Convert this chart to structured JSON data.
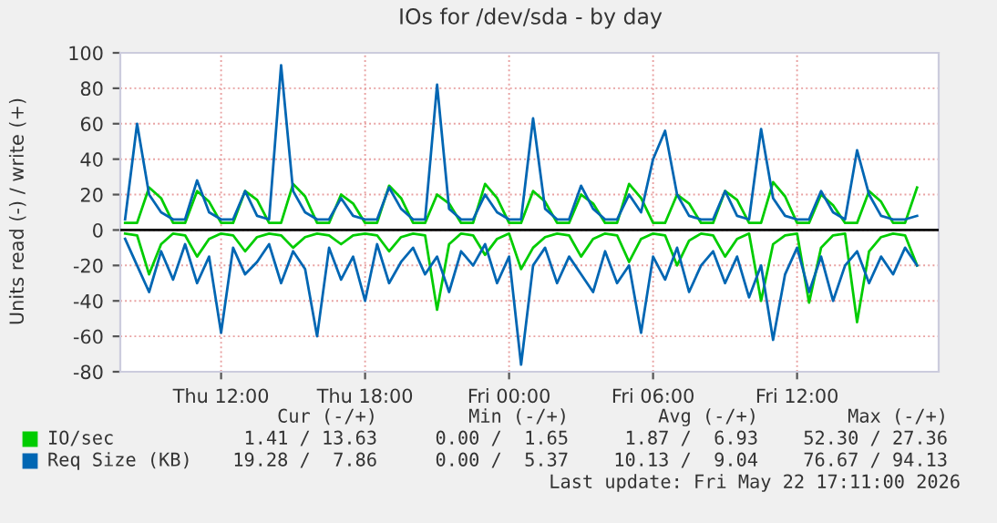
{
  "chart_data": {
    "type": "line",
    "title": "IOs for /dev/sda - by day",
    "ylabel": "Units read (-) / write (+)",
    "x": [
      "2026-05-21T08:00",
      "2026-05-21T08:30",
      "2026-05-21T09:00",
      "2026-05-21T09:30",
      "2026-05-21T10:00",
      "2026-05-21T10:30",
      "2026-05-21T11:00",
      "2026-05-21T11:30",
      "2026-05-21T12:00",
      "2026-05-21T12:30",
      "2026-05-21T13:00",
      "2026-05-21T13:30",
      "2026-05-21T14:00",
      "2026-05-21T14:30",
      "2026-05-21T15:00",
      "2026-05-21T15:30",
      "2026-05-21T16:00",
      "2026-05-21T16:30",
      "2026-05-21T17:00",
      "2026-05-21T17:30",
      "2026-05-21T18:00",
      "2026-05-21T18:30",
      "2026-05-21T19:00",
      "2026-05-21T19:30",
      "2026-05-21T20:00",
      "2026-05-21T20:30",
      "2026-05-21T21:00",
      "2026-05-21T21:30",
      "2026-05-21T22:00",
      "2026-05-21T22:30",
      "2026-05-21T23:00",
      "2026-05-21T23:30",
      "2026-05-22T00:00",
      "2026-05-22T00:30",
      "2026-05-22T01:00",
      "2026-05-22T01:30",
      "2026-05-22T02:00",
      "2026-05-22T02:30",
      "2026-05-22T03:00",
      "2026-05-22T03:30",
      "2026-05-22T04:00",
      "2026-05-22T04:30",
      "2026-05-22T05:00",
      "2026-05-22T05:30",
      "2026-05-22T06:00",
      "2026-05-22T06:30",
      "2026-05-22T07:00",
      "2026-05-22T07:30",
      "2026-05-22T08:00",
      "2026-05-22T08:30",
      "2026-05-22T09:00",
      "2026-05-22T09:30",
      "2026-05-22T10:00",
      "2026-05-22T10:30",
      "2026-05-22T11:00",
      "2026-05-22T11:30",
      "2026-05-22T12:00",
      "2026-05-22T12:30",
      "2026-05-22T13:00",
      "2026-05-22T13:30",
      "2026-05-22T14:00",
      "2026-05-22T14:30",
      "2026-05-22T15:00",
      "2026-05-22T15:30",
      "2026-05-22T16:00",
      "2026-05-22T16:30",
      "2026-05-22T17:00"
    ],
    "series": [
      {
        "name": "IO/sec",
        "color": "#00cc00",
        "values": [
          4,
          4,
          24,
          18,
          4,
          4,
          22,
          16,
          4,
          4,
          22,
          17,
          4,
          4,
          26,
          19,
          4,
          4,
          20,
          15,
          4,
          4,
          25,
          18,
          4,
          4,
          20,
          15,
          4,
          4,
          26,
          18,
          4,
          4,
          22,
          16,
          4,
          4,
          20,
          15,
          4,
          4,
          26,
          18,
          4,
          4,
          20,
          15,
          4,
          4,
          22,
          17,
          4,
          4,
          27,
          19,
          4,
          4,
          20,
          14,
          4,
          4,
          22,
          16,
          4,
          4,
          24
        ]
      },
      {
        "color": "#00cc00",
        "values": [
          -2,
          -3,
          -25,
          -8,
          -2,
          -3,
          -15,
          -5,
          -2,
          -3,
          -12,
          -4,
          -2,
          -3,
          -10,
          -4,
          -2,
          -3,
          -8,
          -3,
          -2,
          -3,
          -12,
          -4,
          -2,
          -3,
          -45,
          -8,
          -2,
          -3,
          -14,
          -5,
          -2,
          -22,
          -10,
          -4,
          -2,
          -3,
          -15,
          -5,
          -2,
          -3,
          -18,
          -5,
          -2,
          -3,
          -20,
          -6,
          -2,
          -3,
          -15,
          -5,
          -2,
          -40,
          -8,
          -3,
          -2,
          -41,
          -10,
          -3,
          -2,
          -52,
          -12,
          -4,
          -2,
          -3,
          -20
        ]
      },
      {
        "name": "Req Size (KB)",
        "color": "#0066b3",
        "values": [
          6,
          60,
          20,
          10,
          6,
          6,
          28,
          10,
          6,
          6,
          22,
          8,
          6,
          93,
          22,
          10,
          6,
          6,
          18,
          8,
          6,
          6,
          24,
          12,
          6,
          6,
          82,
          12,
          6,
          6,
          20,
          10,
          6,
          6,
          63,
          12,
          6,
          6,
          25,
          12,
          6,
          6,
          20,
          10,
          40,
          56,
          20,
          8,
          6,
          6,
          22,
          8,
          6,
          57,
          18,
          8,
          6,
          6,
          22,
          10,
          6,
          45,
          20,
          8,
          6,
          6,
          8
        ]
      },
      {
        "color": "#0066b3",
        "values": [
          -5,
          -20,
          -35,
          -12,
          -28,
          -8,
          -30,
          -15,
          -58,
          -10,
          -25,
          -18,
          -8,
          -30,
          -12,
          -22,
          -60,
          -10,
          -28,
          -15,
          -40,
          -8,
          -30,
          -18,
          -10,
          -25,
          -15,
          -35,
          -12,
          -20,
          -8,
          -30,
          -15,
          -76,
          -20,
          -10,
          -30,
          -15,
          -25,
          -35,
          -12,
          -30,
          -20,
          -58,
          -15,
          -28,
          -10,
          -35,
          -20,
          -12,
          -30,
          -15,
          -38,
          -20,
          -62,
          -25,
          -10,
          -35,
          -15,
          -40,
          -20,
          -12,
          -30,
          -15,
          -25,
          -10,
          -20
        ]
      }
    ],
    "xlim": [
      "2026-05-21T07:48",
      "2026-05-22T17:54"
    ],
    "xticks": [
      {
        "value": "2026-05-21T12:00",
        "label": "Thu 12:00"
      },
      {
        "value": "2026-05-21T18:00",
        "label": "Thu 18:00"
      },
      {
        "value": "2026-05-22T00:00",
        "label": "Fri 00:00"
      },
      {
        "value": "2026-05-22T06:00",
        "label": "Fri 06:00"
      },
      {
        "value": "2026-05-22T12:00",
        "label": "Fri 12:00"
      }
    ],
    "ylim": [
      -80,
      100
    ],
    "yticks": [
      -80,
      -60,
      -40,
      -20,
      0,
      20,
      40,
      60,
      80,
      100
    ],
    "grid": true,
    "ref_lines": [
      {
        "axis": "y",
        "value": 0,
        "color": "#000000"
      }
    ],
    "legend": "bottom",
    "annotations": [
      "Cur (-/+)",
      "Min (-/+)",
      "Avg (-/+)",
      "Max (-/+)",
      "1.41 / 13.63",
      "0.00 /  1.65",
      "1.87 /  6.93",
      "52.30 / 27.36",
      "19.28 /  7.86",
      "0.00 /  5.37",
      "10.13 /  9.04",
      "76.67 / 94.13",
      "Last update: Fri May 22 17:11:00 2026"
    ]
  }
}
